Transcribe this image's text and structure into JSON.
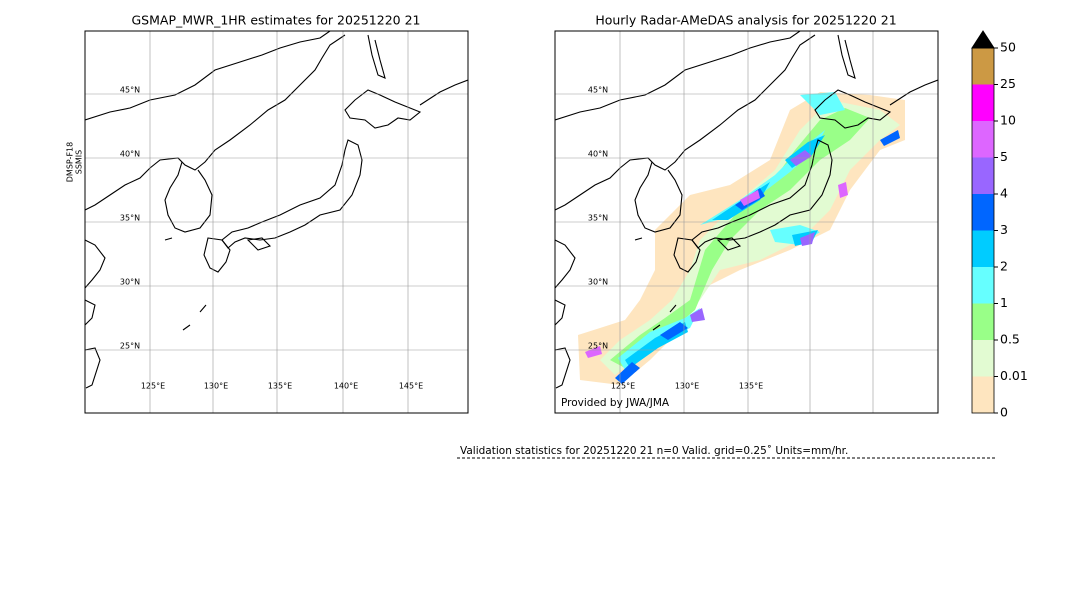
{
  "panels": [
    {
      "title": "GSMAP_MWR_1HR estimates for 20251220 21",
      "side_label": [
        "DMSP-F18",
        "SSMIS"
      ],
      "lat_labels": [
        "45°N",
        "40°N",
        "35°N",
        "30°N",
        "25°N"
      ],
      "lon_labels": [
        "125°E",
        "130°E",
        "135°E",
        "140°E",
        "145°E"
      ]
    },
    {
      "title": "Hourly Radar-AMeDAS analysis for 20251220 21",
      "lat_labels": [
        "45°N",
        "40°N",
        "35°N",
        "30°N",
        "25°N"
      ],
      "lon_labels": [
        "125°E",
        "130°E",
        "135°E"
      ],
      "credit": "Provided by JWA/JMA"
    }
  ],
  "colorbar": {
    "levels": [
      0,
      0.01,
      0.5,
      1,
      2,
      3,
      4,
      5,
      10,
      25,
      50
    ],
    "colors": [
      "#fee5bf",
      "#e2fbd2",
      "#99ff88",
      "#66ffff",
      "#00ccff",
      "#0066ff",
      "#9966ff",
      "#dd66ff",
      "#ff00ff",
      "#cc9944"
    ],
    "extend_color": "#000000"
  },
  "validation": "Validation statistics for 20251220 21  n=0 Valid. grid=0.25˚ Units=mm/hr."
}
